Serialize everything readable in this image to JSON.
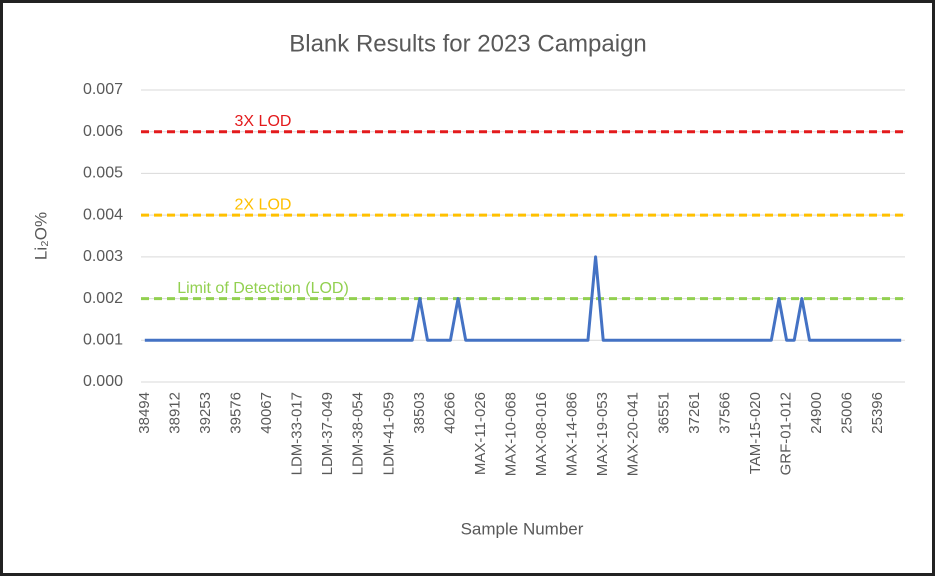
{
  "chart_data": {
    "type": "line",
    "title": "Blank Results for 2023 Campaign",
    "x_label": "Sample Number",
    "y_label": "Li₂O%",
    "categories": [
      "38494",
      null,
      null,
      null,
      "38912",
      null,
      null,
      null,
      "39253",
      null,
      null,
      null,
      "39576",
      null,
      null,
      null,
      "40067",
      null,
      null,
      null,
      "LDM-33-017",
      null,
      null,
      null,
      "LDM-37-049",
      null,
      null,
      null,
      "LDM-38-054",
      null,
      null,
      null,
      "LDM-41-059",
      null,
      null,
      null,
      "38503",
      null,
      null,
      null,
      "40266",
      null,
      null,
      null,
      "MAX-11-026",
      null,
      null,
      null,
      "MAX-10-068",
      null,
      null,
      null,
      "MAX-08-016",
      null,
      null,
      null,
      "MAX-14-086",
      null,
      null,
      null,
      "MAX-19-053",
      null,
      null,
      null,
      "MAX-20-041",
      null,
      null,
      null,
      "36551",
      null,
      null,
      null,
      "37261",
      null,
      null,
      null,
      "37566",
      null,
      null,
      null,
      "TAM-15-020",
      null,
      null,
      null,
      "GRF-01-012",
      null,
      null,
      null,
      "24900",
      null,
      null,
      null,
      "25006",
      null,
      null,
      null,
      "25396",
      null,
      null,
      null
    ],
    "series": [
      {
        "color": "#4472c4",
        "values": [
          0.001,
          0.001,
          0.001,
          0.001,
          0.001,
          0.001,
          0.001,
          0.001,
          0.001,
          0.001,
          0.001,
          0.001,
          0.001,
          0.001,
          0.001,
          0.001,
          0.001,
          0.001,
          0.001,
          0.001,
          0.001,
          0.001,
          0.001,
          0.001,
          0.001,
          0.001,
          0.001,
          0.001,
          0.001,
          0.001,
          0.001,
          0.001,
          0.001,
          0.001,
          0.001,
          0.001,
          0.002,
          0.001,
          0.001,
          0.001,
          0.001,
          0.002,
          0.001,
          0.001,
          0.001,
          0.001,
          0.001,
          0.001,
          0.001,
          0.001,
          0.001,
          0.001,
          0.001,
          0.001,
          0.001,
          0.001,
          0.001,
          0.001,
          0.001,
          0.003,
          0.001,
          0.001,
          0.001,
          0.001,
          0.001,
          0.001,
          0.001,
          0.001,
          0.001,
          0.001,
          0.001,
          0.001,
          0.001,
          0.001,
          0.001,
          0.001,
          0.001,
          0.001,
          0.001,
          0.001,
          0.001,
          0.001,
          0.001,
          0.002,
          0.001,
          0.001,
          0.002,
          0.001,
          0.001,
          0.001,
          0.001,
          0.001,
          0.001,
          0.001,
          0.001,
          0.001,
          0.001,
          0.001,
          0.001,
          0.001
        ]
      }
    ],
    "reference_lines": [
      {
        "label": "3X LOD",
        "value": 0.006,
        "color": "#e31a1c"
      },
      {
        "label": "2X LOD",
        "value": 0.004,
        "color": "#ffc000"
      },
      {
        "label": "Limit of Detection (LOD)",
        "value": 0.002,
        "color": "#92d050"
      }
    ],
    "ylim": [
      0,
      0.007
    ],
    "yticks": [
      {
        "value": 0,
        "label": "0.000"
      },
      {
        "value": 0.001,
        "label": "0.001"
      },
      {
        "value": 0.002,
        "label": "0.002"
      },
      {
        "value": 0.003,
        "label": "0.003"
      },
      {
        "value": 0.004,
        "label": "0.004"
      },
      {
        "value": 0.005,
        "label": "0.005"
      },
      {
        "value": 0.006,
        "label": "0.006"
      },
      {
        "value": 0.007,
        "label": "0.007"
      }
    ],
    "grid": true
  }
}
